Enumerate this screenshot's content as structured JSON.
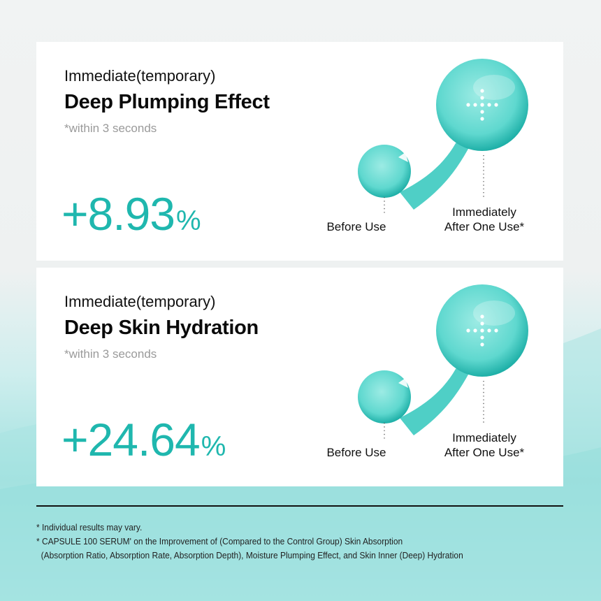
{
  "colors": {
    "accent": "#1fb7ae",
    "text": "#111111",
    "note": "#9a9a9a"
  },
  "cards": [
    {
      "subtitle": "Immediate(temporary)",
      "title": "Deep Plumping Effect",
      "note": "*within 3 seconds",
      "value": "+8.93",
      "unit": "%",
      "before_label": "Before Use",
      "after_label_1": "Immediately",
      "after_label_2": "After One Use*",
      "icon": "droplet-plus-icon"
    },
    {
      "subtitle": "Immediate(temporary)",
      "title": "Deep Skin Hydration",
      "note": "*within 3 seconds",
      "value": "+24.64",
      "unit": "%",
      "before_label": "Before Use",
      "after_label_1": "Immediately",
      "after_label_2": "After One Use*",
      "icon": "droplet-plus-icon"
    }
  ],
  "footnotes": [
    "* Individual results may vary.",
    "* CAPSULE 100 SERUM' on the Improvement of (Compared to the Control Group) Skin Absorption",
    "  (Absorption Ratio, Absorption Rate, Absorption Depth), Moisture Plumping Effect, and Skin Inner (Deep) Hydration"
  ]
}
